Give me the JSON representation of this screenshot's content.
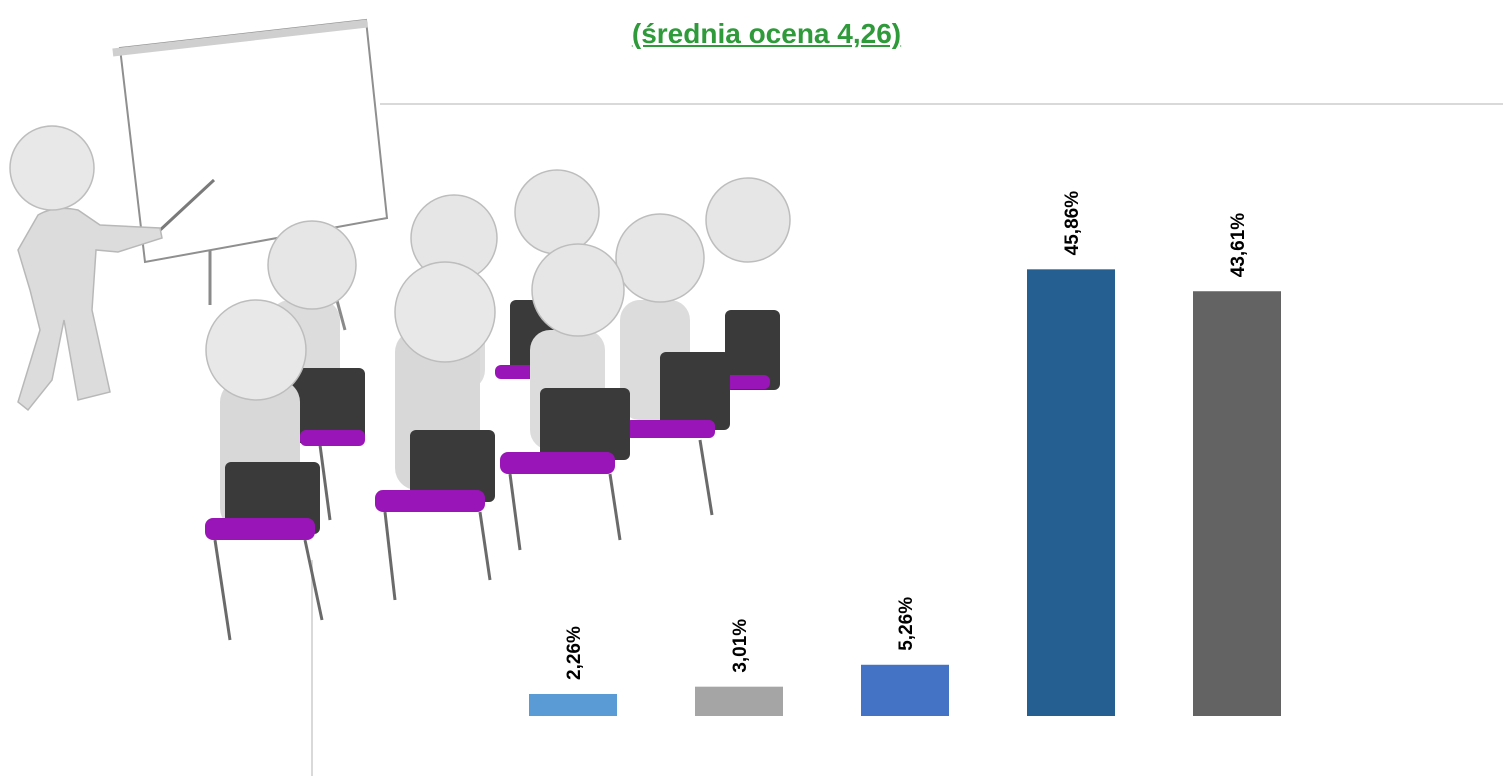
{
  "title": "(średnia ocena 4,26)",
  "title_color": "#2e9a3a",
  "chart_data": {
    "type": "bar",
    "title": "(średnia ocena 4,26)",
    "categories": [
      "",
      "",
      "",
      "",
      ""
    ],
    "values": [
      2.26,
      3.01,
      5.26,
      45.86,
      43.61
    ],
    "labels": [
      "2,26%",
      "3,01%",
      "5,26%",
      "45,86%",
      "43,61%"
    ],
    "colors": [
      "#5b9bd5",
      "#a5a5a5",
      "#4472c4",
      "#255e91",
      "#636363"
    ],
    "ylim": [
      0,
      50
    ],
    "grid": false,
    "legend": "none"
  },
  "illustration": {
    "name": "presentation-audience-illustration",
    "colors": {
      "figure": "#e4e4e4",
      "chair": "#3a3a3a",
      "seat": "#9a15b8",
      "board": "#ffffff"
    }
  }
}
